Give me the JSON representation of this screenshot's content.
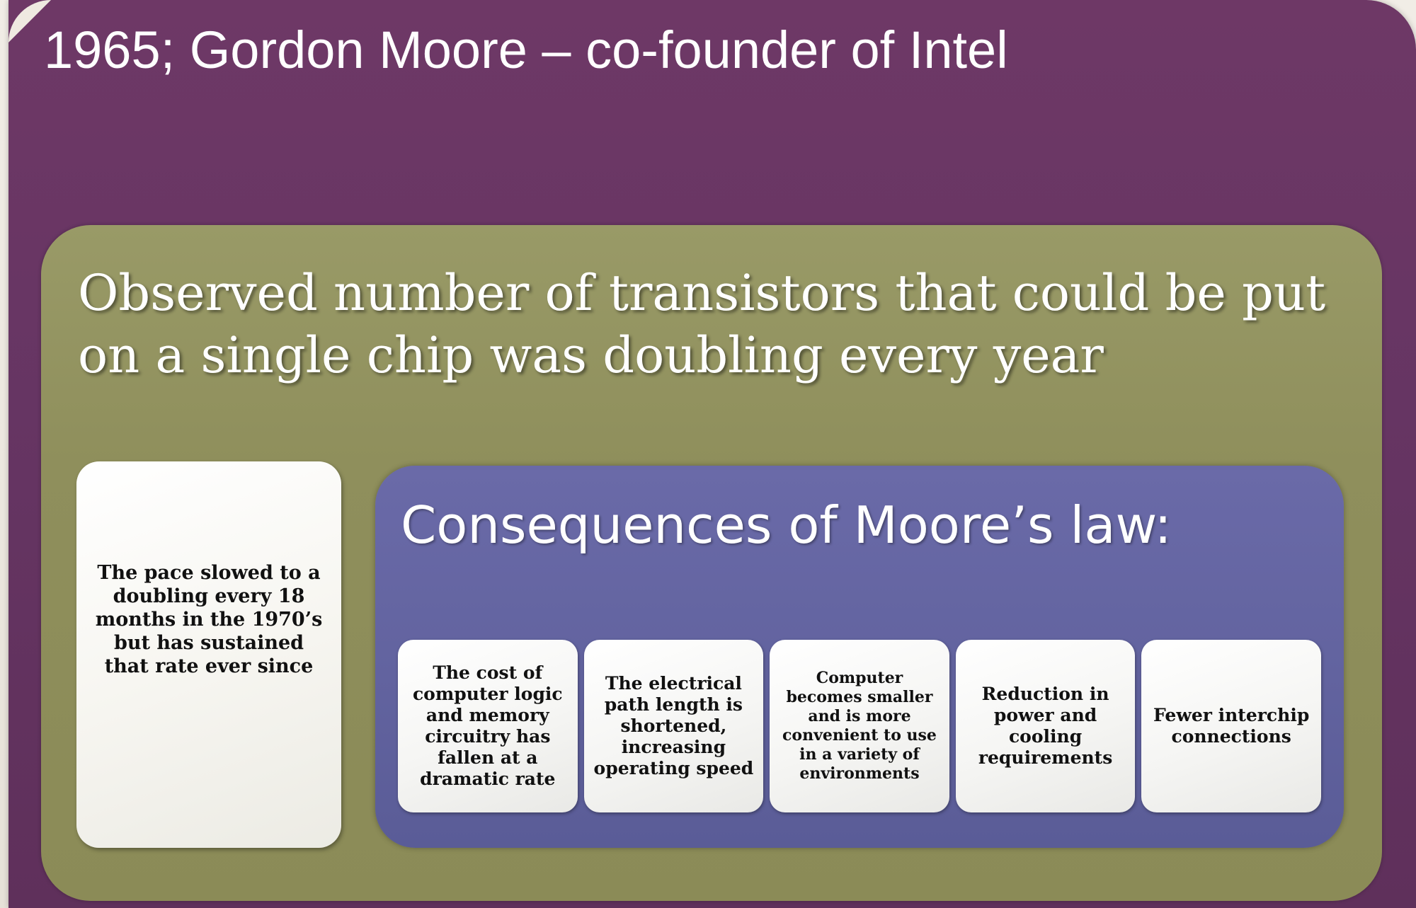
{
  "slide": {
    "title": "1965; Gordon Moore – co-founder of Intel",
    "observation": "Observed number of transistors that could be put on a single chip was doubling every year",
    "pace_note": "The pace slowed to a doubling every 18 months in the 1970’s but has sustained that rate ever since",
    "consequences": {
      "heading": "Consequences of Moore’s law:",
      "items": [
        "The cost of computer logic and memory circuitry has fallen at a dramatic rate",
        "The electrical path length is shortened, increasing operating speed",
        "Computer becomes smaller and is more convenient to use in a variety of environments",
        "Reduction in power and cooling requirements",
        "Fewer interchip connections"
      ]
    }
  },
  "colors": {
    "outer_panel": "#663563",
    "inner_panel": "#8f8f5c",
    "consequences_panel": "#62639f",
    "card_background": "#f7f6f1",
    "title_text": "#ffffff",
    "card_text": "#111111"
  }
}
